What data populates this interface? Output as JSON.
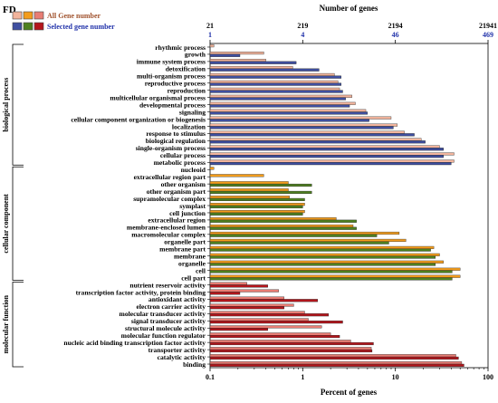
{
  "panel_label": "FD",
  "chart_data": {
    "type": "bar",
    "orientation": "horizontal",
    "x_scale": "log",
    "xlim": [
      0.1,
      100
    ],
    "xticks": [
      "0.1",
      "1",
      "10",
      "100"
    ],
    "xlabel": "Percent of genes",
    "top_axis_label": "Number of genes",
    "top_ticks": [
      {
        "all": "21",
        "selected": "1"
      },
      {
        "all": "219",
        "selected": "4"
      },
      {
        "all": "2194",
        "selected": "46"
      },
      {
        "all": "21941",
        "selected": "469"
      }
    ],
    "legend": {
      "placement": "top-left",
      "all_label": "All Gene number",
      "selected_label": "Selected gene number"
    },
    "colors": {
      "biological process": {
        "all": "#f2b49c",
        "selected": "#3f4fa0"
      },
      "cellular component": {
        "all": "#f39c1c",
        "selected": "#4e8020"
      },
      "molecular function": {
        "all": "#e87d74",
        "selected": "#b4161c"
      },
      "all_label_text": "#a0522d",
      "selected_label_text": "#2233aa"
    },
    "groups": [
      {
        "name": "biological process",
        "categories": [
          {
            "label": "rhythmic process",
            "all": 0.11,
            "selected": 0
          },
          {
            "label": "growth",
            "all": 0.38,
            "selected": 0.21
          },
          {
            "label": "immune system process",
            "all": 0.4,
            "selected": 0.85
          },
          {
            "label": "detoxification",
            "all": 0.78,
            "selected": 1.5
          },
          {
            "label": "multi-organism process",
            "all": 2.2,
            "selected": 2.6
          },
          {
            "label": "reproductive process",
            "all": 2.4,
            "selected": 2.6
          },
          {
            "label": "reproduction",
            "all": 2.5,
            "selected": 2.7
          },
          {
            "label": "multicellular organismal process",
            "all": 3.4,
            "selected": 2.9
          },
          {
            "label": "developmental process",
            "all": 3.7,
            "selected": 3.2
          },
          {
            "label": "signaling",
            "all": 4.8,
            "selected": 5.0
          },
          {
            "label": "cellular component organization or biogenesis",
            "all": 9.0,
            "selected": 5.2
          },
          {
            "label": "localization",
            "all": 10.5,
            "selected": 9.5
          },
          {
            "label": "response to stimulus",
            "all": 12.5,
            "selected": 16.0
          },
          {
            "label": "biological regulation",
            "all": 19.0,
            "selected": 21.0
          },
          {
            "label": "single-organism process",
            "all": 30.0,
            "selected": 33.0
          },
          {
            "label": "cellular process",
            "all": 43.0,
            "selected": 33.0
          },
          {
            "label": "metabolic process",
            "all": 43.0,
            "selected": 40.0
          }
        ]
      },
      {
        "name": "cellular component",
        "categories": [
          {
            "label": "nucleoid",
            "all": 0.11,
            "selected": 0
          },
          {
            "label": "extracellular region part",
            "all": 0.38,
            "selected": 0
          },
          {
            "label": "other organism",
            "all": 0.7,
            "selected": 1.25
          },
          {
            "label": "other organism part",
            "all": 0.7,
            "selected": 1.25
          },
          {
            "label": "supramolecular complex",
            "all": 0.72,
            "selected": 1.05
          },
          {
            "label": "symplast",
            "all": 1.05,
            "selected": 1.0
          },
          {
            "label": "cell junction",
            "all": 1.05,
            "selected": 1.0
          },
          {
            "label": "extracellular region",
            "all": 2.3,
            "selected": 3.8
          },
          {
            "label": "membrane-enclosed lumen",
            "all": 3.5,
            "selected": 3.8
          },
          {
            "label": "macromolecular complex",
            "all": 11.0,
            "selected": 6.3
          },
          {
            "label": "organelle part",
            "all": 13.0,
            "selected": 8.5
          },
          {
            "label": "membrane part",
            "all": 26.0,
            "selected": 24.0
          },
          {
            "label": "membrane",
            "all": 30.0,
            "selected": 27.0
          },
          {
            "label": "organelle",
            "all": 33.0,
            "selected": 27.0
          },
          {
            "label": "cell",
            "all": 50.0,
            "selected": 41.0
          },
          {
            "label": "cell part",
            "all": 50.0,
            "selected": 41.0
          }
        ]
      },
      {
        "name": "molecular function",
        "categories": [
          {
            "label": "nutrient reservoir activity",
            "all": 0.25,
            "selected": 0.42
          },
          {
            "label": "transcription factor activity, protein binding",
            "all": 0.55,
            "selected": 0.21
          },
          {
            "label": "antioxidant activity",
            "all": 0.63,
            "selected": 1.45
          },
          {
            "label": "electron carrier activity",
            "all": 0.8,
            "selected": 0.63
          },
          {
            "label": "molecular transducer activity",
            "all": 1.05,
            "selected": 1.9
          },
          {
            "label": "signal transducer activity",
            "all": 1.15,
            "selected": 2.7
          },
          {
            "label": "structural molecule activity",
            "all": 1.6,
            "selected": 0.42
          },
          {
            "label": "molecular function regulator",
            "all": 2.0,
            "selected": 2.5
          },
          {
            "label": "nucleic acid binding transcription factor activity",
            "all": 3.3,
            "selected": 5.8
          },
          {
            "label": "transporter activity",
            "all": 5.5,
            "selected": 5.6
          },
          {
            "label": "catalytic activity",
            "all": 45.0,
            "selected": 48.0
          },
          {
            "label": "binding",
            "all": 52.0,
            "selected": 55.0
          }
        ]
      }
    ]
  }
}
